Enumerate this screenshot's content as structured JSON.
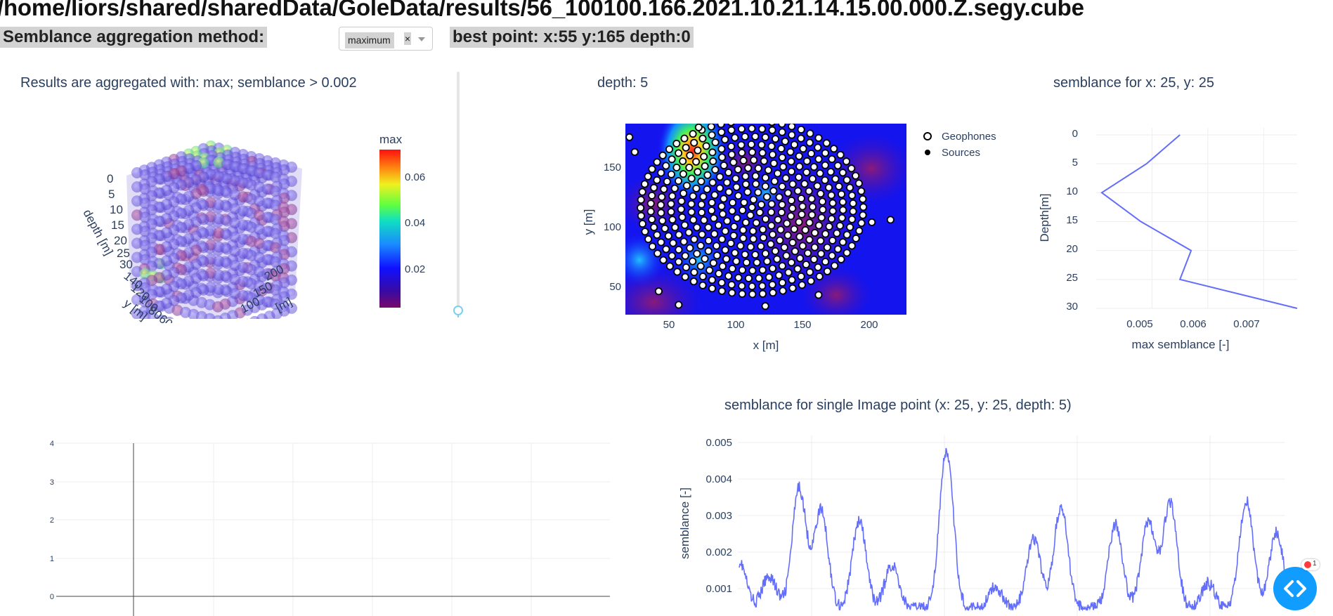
{
  "header": {
    "path": "/home/liors/shared/sharedData/GoleData/results/56_100100.166.2021.10.21.14.15.00.000.Z.segy.cube",
    "aggregation_label": "Semblance aggregation method:",
    "aggregation_value": "maximum",
    "clear_symbol": "×",
    "best_point": "best point: x:55 y:165 depth:0"
  },
  "cube_plot": {
    "title": "Results are aggregated with: max; semblance > 0.002",
    "colorbar_title": "max",
    "colorbar_ticks": [
      "0.06",
      "0.04",
      "0.02"
    ],
    "depth_axis_label": "depth [m]",
    "depth_ticks": [
      "0",
      "5",
      "10",
      "15",
      "20",
      "25",
      "30"
    ],
    "y_axis_label": "y [m]",
    "y_ticks": [
      "140",
      "120",
      "100",
      "80",
      "60"
    ],
    "x_axis_label": "x [m]",
    "x_ticks": [
      "200",
      "150",
      "100"
    ],
    "x_axis_label_fragment": "[m]"
  },
  "map_plot": {
    "title": "depth: 5",
    "xlabel": "x [m]",
    "ylabel": "y [m]",
    "x_ticks": [
      "50",
      "100",
      "150",
      "200"
    ],
    "y_ticks": [
      "150",
      "100",
      "50"
    ],
    "legend": [
      "Geophones",
      "Sources"
    ]
  },
  "depth_plot": {
    "title": "semblance for x: 25, y: 25",
    "xlabel": "max semblance [-]",
    "ylabel": "Depth[m]",
    "x_ticks": [
      "0.005",
      "0.006",
      "0.007"
    ],
    "y_ticks": [
      "0",
      "5",
      "10",
      "15",
      "20",
      "25",
      "30"
    ]
  },
  "empty_plot": {
    "y_ticks": [
      "4",
      "3",
      "2",
      "1",
      "0"
    ]
  },
  "time_plot": {
    "title": "semblance for single Image point (x: 25, y: 25, depth: 5)",
    "ylabel": "semblance [-]",
    "y_ticks": [
      "0.005",
      "0.004",
      "0.003",
      "0.002",
      "0.001"
    ]
  },
  "fab": {
    "badge_count": "1"
  },
  "colors": {
    "line": "#636efa",
    "fab": "#119dff",
    "highlight": "#d3d3d3",
    "text": "#2a3f5f"
  },
  "chart_data": [
    {
      "type": "line",
      "title": "semblance for x: 25, y: 25",
      "xlabel": "max semblance [-]",
      "ylabel": "Depth[m]",
      "xlim": [
        0.004,
        0.0076
      ],
      "ylim": [
        30,
        0
      ],
      "x": [
        0.0055,
        0.0049,
        0.0041,
        0.0048,
        0.0057,
        0.0055,
        0.0076
      ],
      "y": [
        0,
        5,
        10,
        15,
        20,
        25,
        30
      ]
    },
    {
      "type": "line",
      "title": "semblance for single Image point (x: 25, y: 25, depth: 5)",
      "ylabel": "semblance [-]",
      "ylim": [
        0.0003,
        0.0051
      ],
      "peaks": [
        {
          "pos": 0.0,
          "h": 0.0019
        },
        {
          "pos": 0.055,
          "h": 0.0015
        },
        {
          "pos": 0.11,
          "h": 0.0039
        },
        {
          "pos": 0.15,
          "h": 0.0033
        },
        {
          "pos": 0.22,
          "h": 0.003
        },
        {
          "pos": 0.28,
          "h": 0.0018
        },
        {
          "pos": 0.38,
          "h": 0.0049
        },
        {
          "pos": 0.47,
          "h": 0.0012
        },
        {
          "pos": 0.54,
          "h": 0.0025
        },
        {
          "pos": 0.59,
          "h": 0.0034
        },
        {
          "pos": 0.69,
          "h": 0.0029
        },
        {
          "pos": 0.75,
          "h": 0.003
        },
        {
          "pos": 0.79,
          "h": 0.0035
        },
        {
          "pos": 0.86,
          "h": 0.0013
        },
        {
          "pos": 0.93,
          "h": 0.0036
        },
        {
          "pos": 0.985,
          "h": 0.0027
        }
      ]
    },
    {
      "type": "line",
      "ylim": [
        0,
        4
      ],
      "values": []
    }
  ]
}
